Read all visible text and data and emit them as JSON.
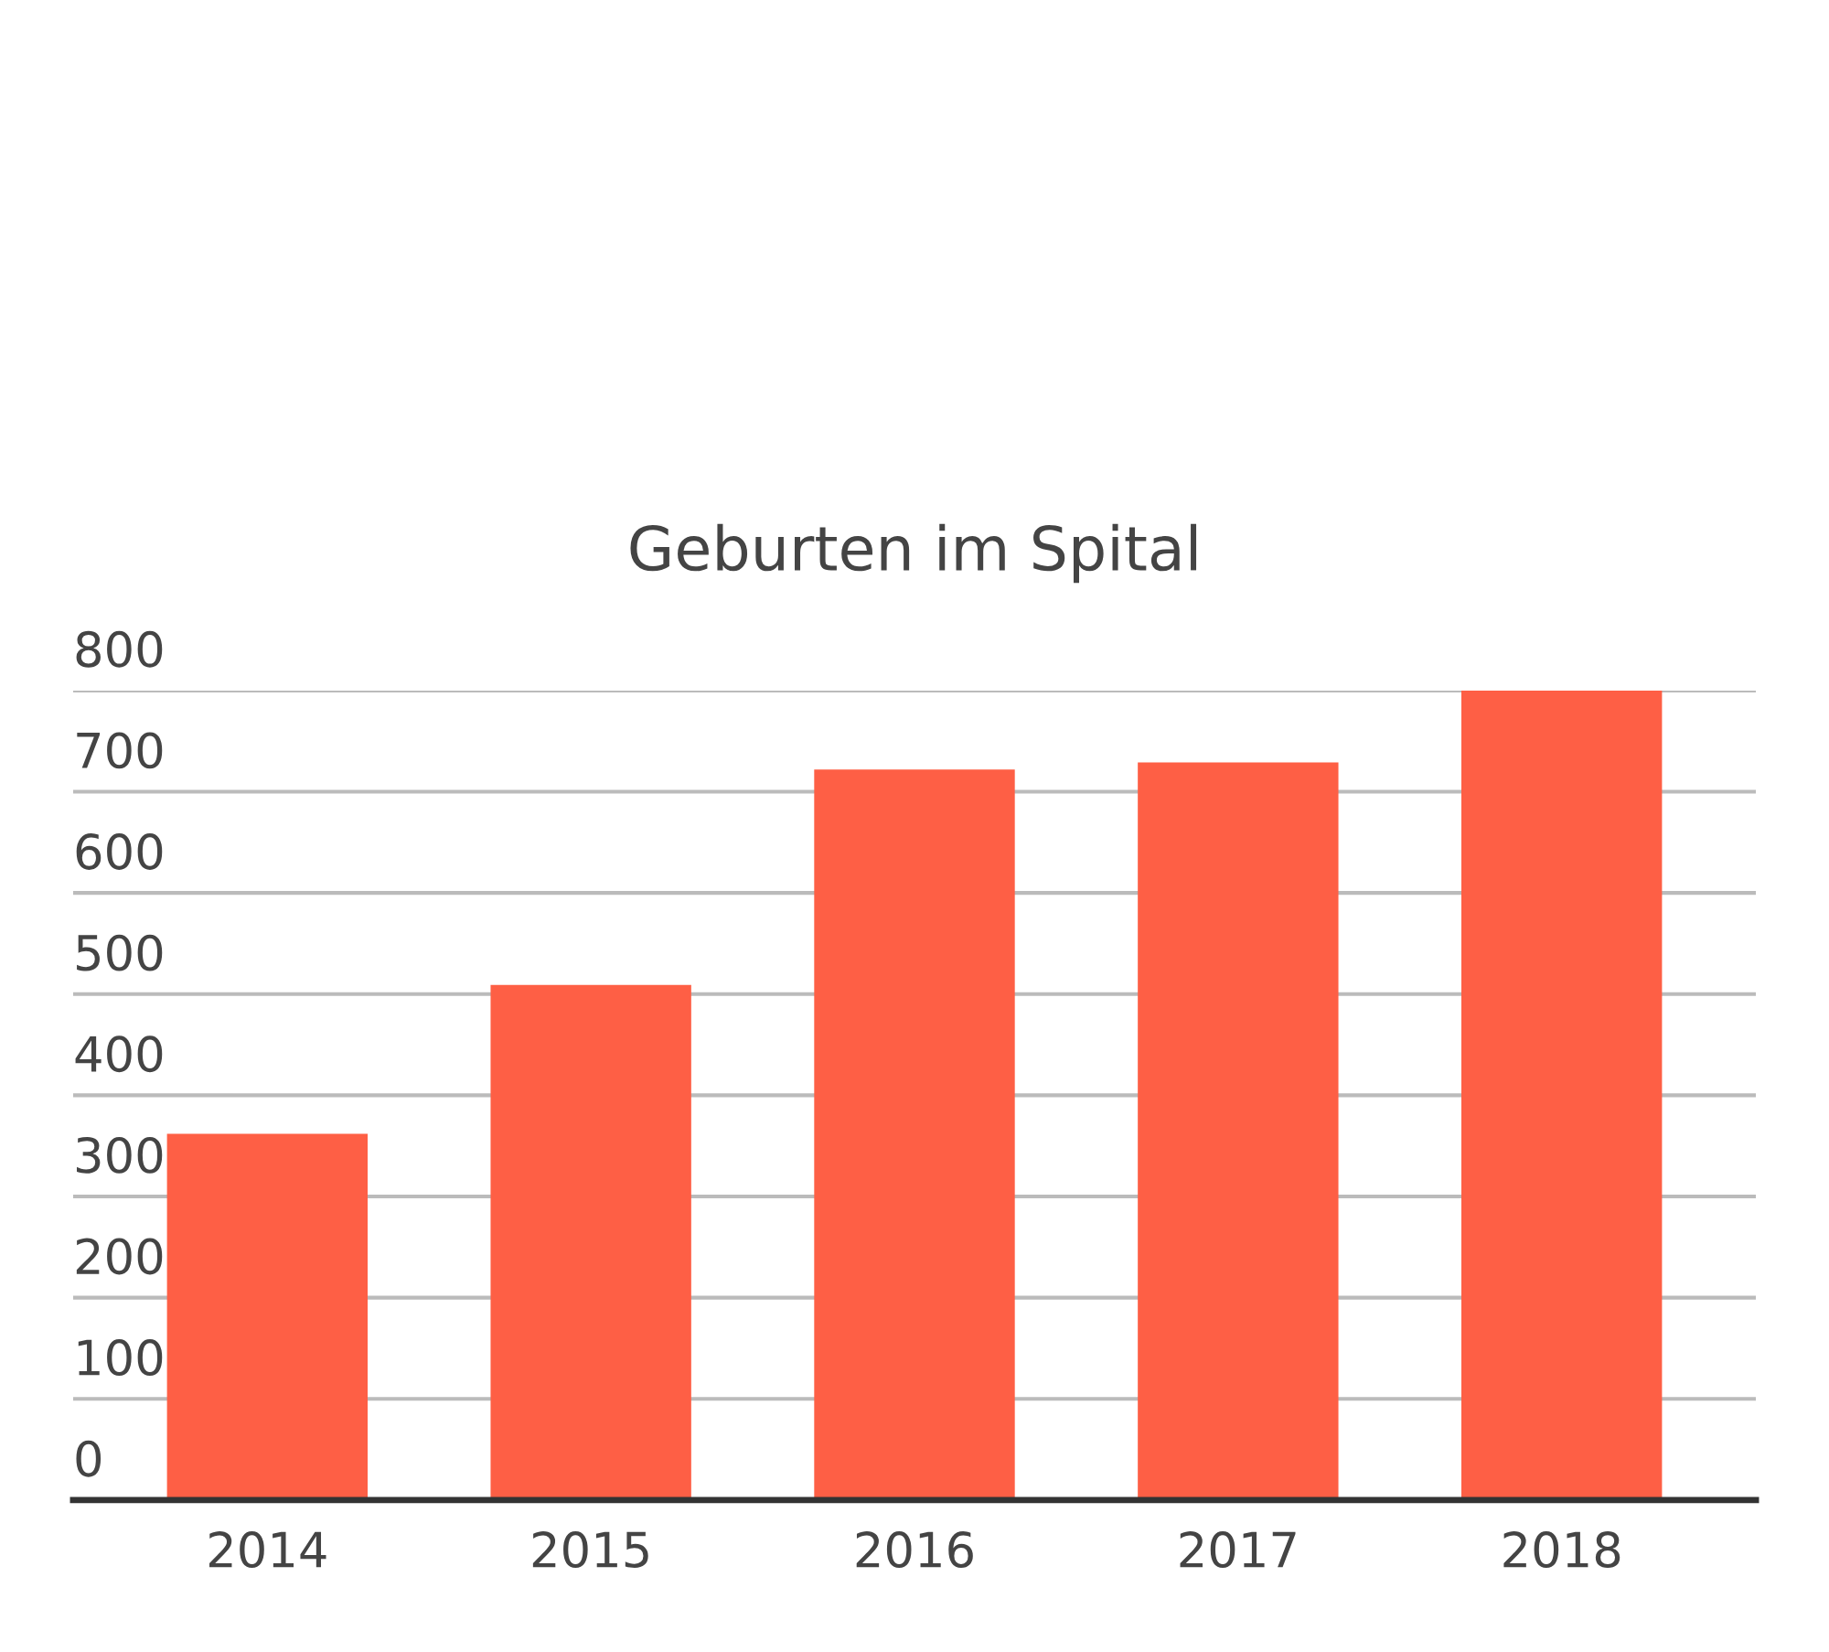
{
  "chart_data": {
    "type": "bar",
    "title": "Geburten im Spital",
    "categories": [
      "2014",
      "2015",
      "2016",
      "2017",
      "2018"
    ],
    "values": [
      362,
      509,
      722,
      729,
      800
    ],
    "color": "#fe5f45",
    "ylim": [
      0,
      800
    ],
    "yticks": [
      0,
      100,
      200,
      300,
      400,
      500,
      600,
      700,
      800
    ],
    "grid": "y",
    "legend": false
  }
}
